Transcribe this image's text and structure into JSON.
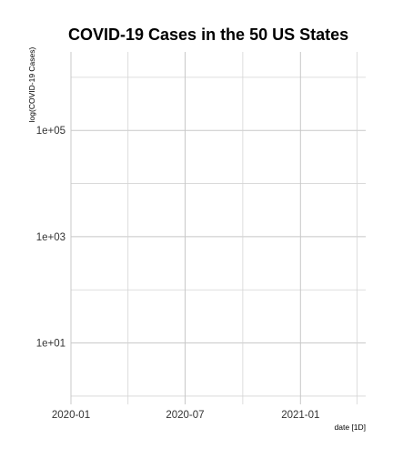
{
  "chart_data": {
    "type": "line",
    "title": "COVID-19 Cases in the 50 US States",
    "xlabel": "date [1D]",
    "ylabel": "log(COVID-19 Cases)",
    "y_scale": "log10",
    "x_ticks": [
      "2020-01",
      "2020-07",
      "2021-01"
    ],
    "y_ticks": [
      "1e+01",
      "1e+03",
      "1e+05"
    ],
    "xlim": [
      "2020-01-01",
      "2021-04-15"
    ],
    "ylim": [
      0.7,
      3000000
    ],
    "grid": true,
    "series": []
  }
}
